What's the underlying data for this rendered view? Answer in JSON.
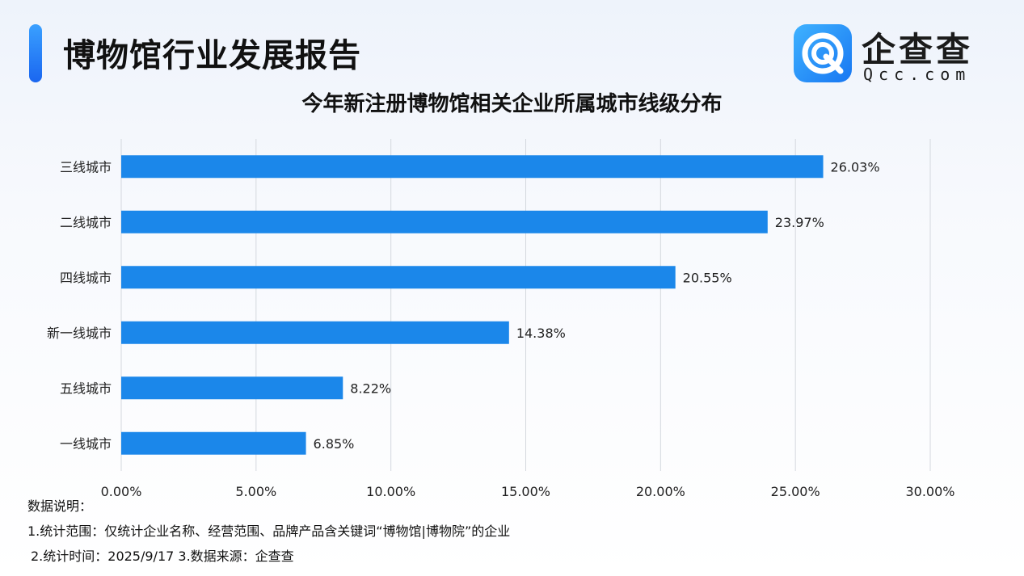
{
  "header": {
    "report_title": "博物馆行业发展报告"
  },
  "logo": {
    "name": "企查查",
    "domain": "Qcc.com",
    "icon": "qcc-logo-icon"
  },
  "colors": {
    "accent": "#1a7fe8",
    "bar": "#1b87ea",
    "grid": "#d4d8de"
  },
  "chart_data": {
    "type": "bar",
    "orientation": "horizontal",
    "title": "今年新注册博物馆相关企业所属城市线级分布",
    "categories": [
      "三线城市",
      "二线城市",
      "四线城市",
      "新一线城市",
      "五线城市",
      "一线城市"
    ],
    "values": [
      26.03,
      23.97,
      20.55,
      14.38,
      8.22,
      6.85
    ],
    "value_labels": [
      "26.03%",
      "23.97%",
      "20.55%",
      "14.38%",
      "8.22%",
      "6.85%"
    ],
    "x_ticks": [
      "0.00%",
      "5.00%",
      "10.00%",
      "15.00%",
      "20.00%",
      "25.00%",
      "30.00%"
    ],
    "xlim": [
      0,
      30
    ],
    "xlabel": "",
    "ylabel": "",
    "grid": "vertical",
    "legend": "none"
  },
  "notes": {
    "heading": "数据说明：",
    "line1": "1.统计范围：仅统计企业名称、经营范围、品牌产品含关键词“博物馆|博物院”的企业",
    "line2": "2.统计时间：2025/9/17  3.数据来源：企查查"
  }
}
